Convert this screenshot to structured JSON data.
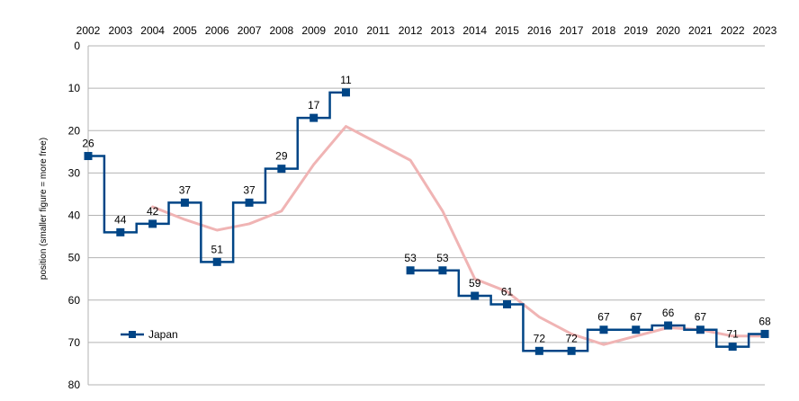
{
  "chart_data": {
    "type": "line",
    "title": "",
    "xlabel": "",
    "ylabel": "position (smaller figure = more free)",
    "x": [
      "2002",
      "2003",
      "2004",
      "2005",
      "2006",
      "2007",
      "2008",
      "2009",
      "2010",
      "2011",
      "2012",
      "2013",
      "2014",
      "2015",
      "2016",
      "2017",
      "2018",
      "2019",
      "2020",
      "2021",
      "2022",
      "2023"
    ],
    "ylim": [
      80,
      0
    ],
    "y_inverted": true,
    "yticks": [
      0,
      10,
      20,
      30,
      40,
      50,
      60,
      70,
      80
    ],
    "grid": true,
    "legend": "bottom-left",
    "series": [
      {
        "name": "Japan",
        "style": "step-center",
        "color": "#004586",
        "marker": "square",
        "values": [
          26,
          44,
          42,
          37,
          51,
          37,
          29,
          17,
          11,
          null,
          53,
          53,
          59,
          61,
          72,
          72,
          67,
          67,
          66,
          67,
          71,
          68
        ]
      },
      {
        "style": "trend",
        "color": "#f0b4b4",
        "values": [
          null,
          null,
          38,
          41,
          43.5,
          42,
          39,
          28,
          19,
          23,
          27,
          39,
          55,
          58,
          64,
          68,
          70.5,
          68.5,
          66.5,
          67,
          68.5,
          68.5
        ]
      }
    ]
  }
}
